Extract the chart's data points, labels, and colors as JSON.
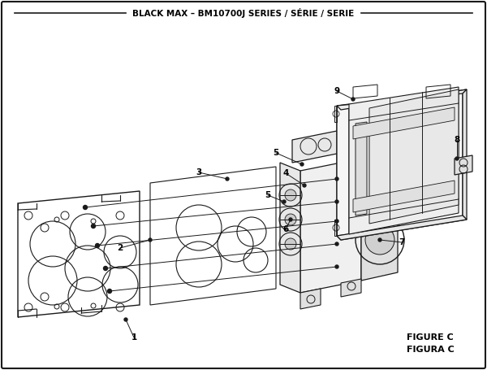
{
  "title": "BLACK MAX – BM10700J SERIES / SÉRIE / SERIE",
  "figure_label": "FIGURE C",
  "figura_label": "FIGURA C",
  "bg_color": "#ffffff",
  "line_color": "#1a1a1a",
  "text_color": "#000000",
  "figsize": [
    6.0,
    4.55
  ],
  "dpi": 100
}
